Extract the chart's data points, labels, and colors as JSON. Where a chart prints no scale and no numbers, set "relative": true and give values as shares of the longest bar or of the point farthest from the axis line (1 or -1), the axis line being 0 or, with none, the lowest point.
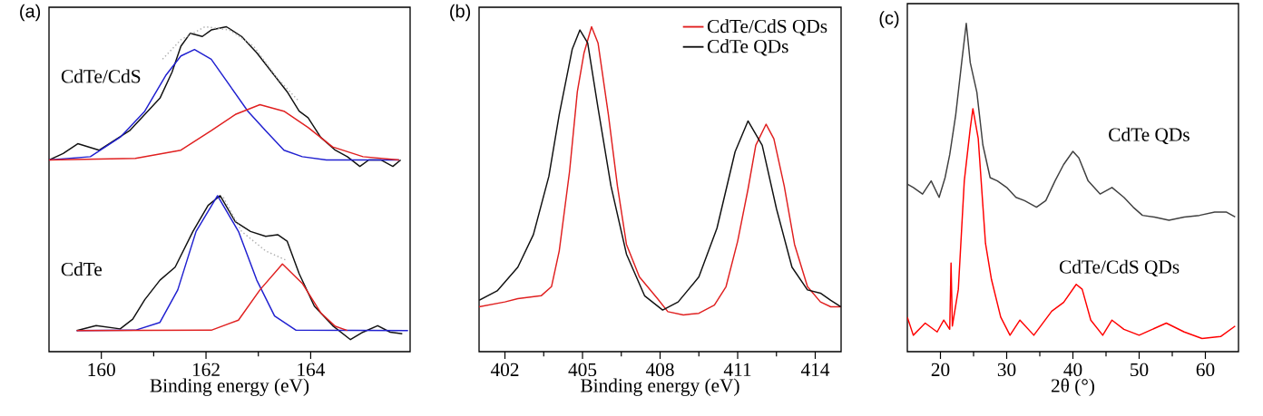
{
  "chart_data": [
    {
      "type": "line",
      "title": "(a)",
      "xlabel": "Binding energy (eV)",
      "xlim": [
        159.0,
        165.9
      ],
      "xticks": [
        160,
        162,
        164
      ],
      "relative": true,
      "annotations": [
        "CdTe/CdS",
        "CdTe"
      ],
      "series": [
        {
          "color": "#111111",
          "x": [
            159.0,
            159.27,
            159.55,
            159.96,
            160.25,
            160.54,
            160.83,
            161.12,
            161.35,
            161.52,
            161.7,
            161.93,
            162.1,
            162.39,
            162.68,
            162.97,
            163.26,
            163.55,
            163.78,
            163.95,
            164.19,
            164.47,
            164.7,
            164.94,
            165.11,
            165.34,
            165.57,
            165.72
          ],
          "values": [
            0.59,
            0.61,
            0.64,
            0.62,
            0.65,
            0.68,
            0.73,
            0.78,
            0.86,
            0.94,
            0.98,
            0.97,
            0.99,
            1.0,
            0.97,
            0.92,
            0.86,
            0.8,
            0.74,
            0.72,
            0.66,
            0.62,
            0.6,
            0.57,
            0.59,
            0.59,
            0.57,
            0.59
          ]
        },
        {
          "color": "#b0b0b0",
          "line_style": "dotted",
          "x": [
            161.17,
            161.52,
            161.98,
            162.45,
            162.91,
            163.37,
            163.78
          ],
          "values": [
            0.9,
            0.96,
            1.0,
            0.99,
            0.94,
            0.84,
            0.77
          ]
        },
        {
          "color": "#2020d0",
          "x": [
            159.0,
            159.79,
            160.36,
            160.83,
            161.23,
            161.52,
            161.78,
            162.1,
            162.45,
            162.8,
            163.14,
            163.49,
            163.84,
            164.3,
            165.69
          ],
          "values": [
            0.59,
            0.6,
            0.66,
            0.74,
            0.85,
            0.91,
            0.93,
            0.9,
            0.82,
            0.74,
            0.68,
            0.62,
            0.6,
            0.59,
            0.59
          ]
        },
        {
          "color": "#e02020",
          "x": [
            159.0,
            160.65,
            161.52,
            162.1,
            162.56,
            163.03,
            163.49,
            163.95,
            164.42,
            165.0,
            165.69
          ],
          "values": [
            0.59,
            0.595,
            0.62,
            0.68,
            0.73,
            0.76,
            0.74,
            0.69,
            0.63,
            0.6,
            0.59
          ]
        },
        {
          "color": "#111111",
          "x": [
            159.53,
            159.9,
            160.36,
            160.6,
            160.83,
            161.12,
            161.41,
            161.75,
            162.04,
            162.27,
            162.56,
            162.85,
            163.14,
            163.37,
            163.55,
            163.78,
            164.07,
            164.42,
            164.76,
            165.0,
            165.28,
            165.52,
            165.75
          ],
          "values": [
            0.065,
            0.08,
            0.07,
            0.1,
            0.16,
            0.22,
            0.26,
            0.37,
            0.45,
            0.48,
            0.4,
            0.37,
            0.355,
            0.36,
            0.34,
            0.24,
            0.14,
            0.08,
            0.037,
            0.06,
            0.08,
            0.06,
            0.055
          ]
        },
        {
          "color": "#b0b0b0",
          "line_style": "dotted",
          "x": [
            162.33,
            162.68,
            163.14,
            163.55
          ],
          "values": [
            0.475,
            0.37,
            0.31,
            0.28
          ]
        },
        {
          "color": "#2020d0",
          "x": [
            159.53,
            160.65,
            161.12,
            161.46,
            161.81,
            162.22,
            162.62,
            162.97,
            163.31,
            163.72,
            165.86
          ],
          "values": [
            0.065,
            0.066,
            0.09,
            0.19,
            0.37,
            0.48,
            0.37,
            0.22,
            0.11,
            0.066,
            0.065
          ]
        },
        {
          "color": "#e02020",
          "x": [
            159.53,
            162.1,
            162.62,
            163.03,
            163.46,
            163.84,
            164.19,
            164.47,
            164.7
          ],
          "values": [
            0.065,
            0.066,
            0.097,
            0.19,
            0.27,
            0.21,
            0.12,
            0.078,
            0.065
          ]
        }
      ]
    },
    {
      "type": "line",
      "title": "(b)",
      "xlabel": "Binding energy (eV)",
      "xlim": [
        401.0,
        415.0
      ],
      "xticks": [
        402,
        405,
        408,
        411,
        414
      ],
      "relative": true,
      "legend": "top right",
      "series": [
        {
          "name": "CdTe/CdS QDs",
          "color": "#e02020",
          "x": [
            401.0,
            402.0,
            402.5,
            403.4,
            403.8,
            404.1,
            404.5,
            404.8,
            405.06,
            405.35,
            405.6,
            406.0,
            406.35,
            406.7,
            407.2,
            407.9,
            408.3,
            408.9,
            409.5,
            410.1,
            410.55,
            411.0,
            411.4,
            411.7,
            412.1,
            412.4,
            412.8,
            413.2,
            413.7,
            414.2,
            414.6,
            415.0
          ],
          "values": [
            0.138,
            0.153,
            0.163,
            0.172,
            0.2,
            0.31,
            0.555,
            0.8,
            0.92,
            1.0,
            0.95,
            0.73,
            0.51,
            0.33,
            0.23,
            0.163,
            0.123,
            0.113,
            0.118,
            0.143,
            0.2,
            0.34,
            0.5,
            0.635,
            0.7,
            0.655,
            0.51,
            0.33,
            0.2,
            0.153,
            0.138,
            0.138
          ]
        },
        {
          "name": "CdTe QDs",
          "color": "#111111",
          "x": [
            401.0,
            401.7,
            402.5,
            403.1,
            403.7,
            404.1,
            404.6,
            404.9,
            405.2,
            405.6,
            406.1,
            406.7,
            407.4,
            408.1,
            408.7,
            409.5,
            410.2,
            410.9,
            411.4,
            411.95,
            412.5,
            413.1,
            413.7,
            414.2,
            414.6,
            415.0
          ],
          "values": [
            0.158,
            0.187,
            0.26,
            0.36,
            0.54,
            0.73,
            0.93,
            0.99,
            0.95,
            0.75,
            0.51,
            0.3,
            0.172,
            0.128,
            0.153,
            0.23,
            0.38,
            0.615,
            0.71,
            0.635,
            0.44,
            0.26,
            0.19,
            0.18,
            0.158,
            0.138
          ]
        }
      ]
    },
    {
      "type": "line",
      "title": "(c)",
      "xlabel": "2θ (°)",
      "xlim": [
        15,
        65
      ],
      "xticks": [
        20,
        30,
        40,
        50,
        60
      ],
      "relative": true,
      "annotations": [
        "CdTe QDs",
        "CdTe/CdS QDs"
      ],
      "series": [
        {
          "color": "#404040",
          "x": [
            15,
            15.9,
            17.3,
            18.6,
            19.8,
            20.7,
            21.4,
            22.3,
            23.2,
            23.9,
            24.5,
            25.5,
            26.4,
            27.5,
            28.6,
            30,
            31.4,
            32.7,
            34.5,
            35.9,
            37.3,
            38.6,
            40,
            40.9,
            42.3,
            44.1,
            45.9,
            47.7,
            49.1,
            50.5,
            52.3,
            54.5,
            56.8,
            59.1,
            61.4,
            63.2,
            64.5
          ],
          "values": [
            0.51,
            0.5,
            0.48,
            0.52,
            0.47,
            0.53,
            0.6,
            0.72,
            0.88,
            1.0,
            0.88,
            0.79,
            0.63,
            0.53,
            0.52,
            0.5,
            0.47,
            0.46,
            0.44,
            0.46,
            0.52,
            0.57,
            0.61,
            0.59,
            0.52,
            0.48,
            0.5,
            0.47,
            0.44,
            0.415,
            0.41,
            0.4,
            0.41,
            0.415,
            0.425,
            0.425,
            0.41
          ]
        },
        {
          "color": "#ff0000",
          "x": [
            15,
            15.9,
            17.7,
            19.5,
            20.5,
            21.4,
            21.6,
            21.8,
            22.7,
            23.6,
            24.5,
            24.9,
            25.7,
            26.8,
            27.7,
            29.1,
            30.5,
            32.0,
            34.1,
            36.8,
            38.6,
            40.5,
            41.4,
            42.7,
            44.5,
            45.9,
            47.7,
            50,
            54.1,
            56.8,
            59.5,
            62.3,
            64.5
          ],
          "values": [
            0.105,
            0.05,
            0.087,
            0.06,
            0.096,
            0.068,
            0.27,
            0.078,
            0.19,
            0.52,
            0.68,
            0.74,
            0.65,
            0.33,
            0.22,
            0.105,
            0.05,
            0.096,
            0.05,
            0.123,
            0.15,
            0.205,
            0.19,
            0.096,
            0.05,
            0.096,
            0.068,
            0.05,
            0.087,
            0.06,
            0.04,
            0.046,
            0.078
          ]
        }
      ]
    }
  ]
}
